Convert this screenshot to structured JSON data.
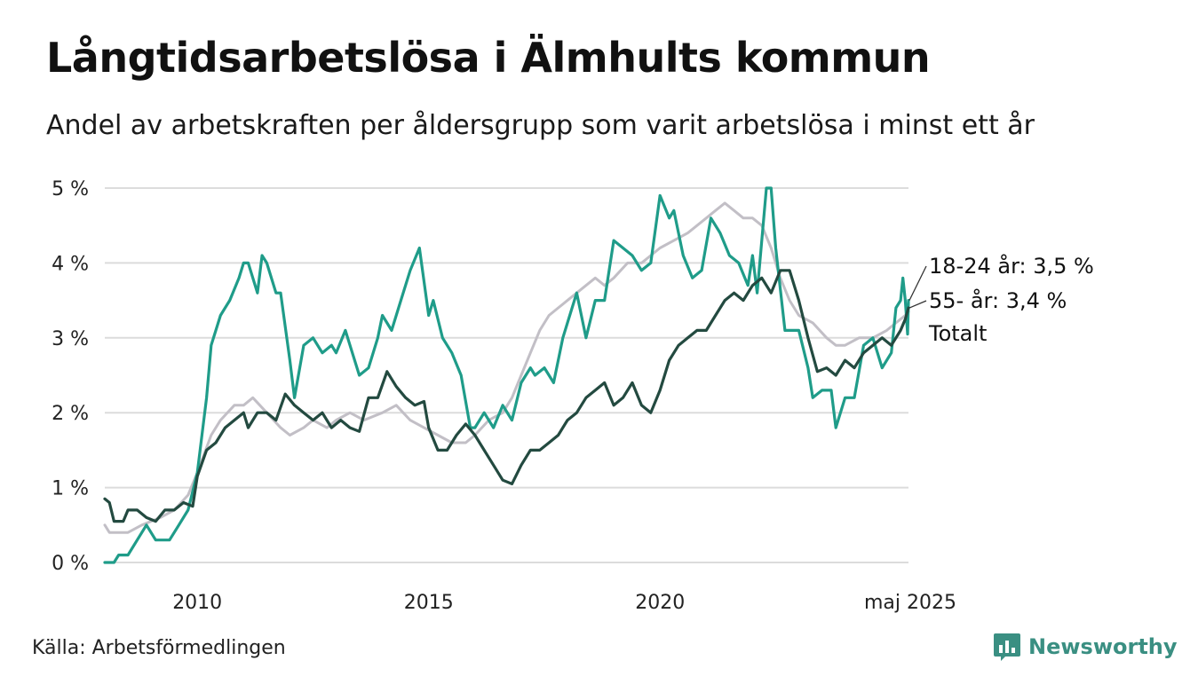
{
  "title": "Långtidsarbetslösa i Älmhults kommun",
  "subtitle": "Andel av arbetskraften per åldersgrupp som varit arbetslösa i minst ett år",
  "source": "Källa: Arbetsförmedlingen",
  "brand": {
    "name": "Newsworthy",
    "icon": "bar-chart-speech-bubble-icon",
    "color": "#3a8f82"
  },
  "chart_data": {
    "type": "line",
    "x_unit": "year",
    "xlim": [
      2008.0,
      2025.37
    ],
    "ylim": [
      0,
      5
    ],
    "y_ticks": [
      {
        "value": 0,
        "label": "0 %"
      },
      {
        "value": 1,
        "label": "1 %"
      },
      {
        "value": 2,
        "label": "2 %"
      },
      {
        "value": 3,
        "label": "3 %"
      },
      {
        "value": 4,
        "label": "4 %"
      },
      {
        "value": 5,
        "label": "5 %"
      }
    ],
    "x_ticks": [
      {
        "value": 2010,
        "label": "2010"
      },
      {
        "value": 2015,
        "label": "2015"
      },
      {
        "value": 2020,
        "label": "2020"
      },
      {
        "value": 2025.37,
        "label": "maj 2025"
      }
    ],
    "grid": true,
    "legend": "end-labels-right",
    "series": [
      {
        "name": "Totalt",
        "label": "Totalt",
        "color": "#c2bfc6",
        "points": [
          [
            2008.0,
            0.5
          ],
          [
            2008.1,
            0.4
          ],
          [
            2008.5,
            0.4
          ],
          [
            2008.8,
            0.5
          ],
          [
            2009.2,
            0.6
          ],
          [
            2009.5,
            0.7
          ],
          [
            2009.8,
            0.9
          ],
          [
            2010.0,
            1.2
          ],
          [
            2010.3,
            1.7
          ],
          [
            2010.5,
            1.9
          ],
          [
            2010.8,
            2.1
          ],
          [
            2011.0,
            2.1
          ],
          [
            2011.2,
            2.2
          ],
          [
            2011.5,
            2.0
          ],
          [
            2011.8,
            1.8
          ],
          [
            2012.0,
            1.7
          ],
          [
            2012.3,
            1.8
          ],
          [
            2012.5,
            1.9
          ],
          [
            2012.8,
            1.8
          ],
          [
            2013.0,
            1.9
          ],
          [
            2013.3,
            2.0
          ],
          [
            2013.6,
            1.9
          ],
          [
            2014.0,
            2.0
          ],
          [
            2014.3,
            2.1
          ],
          [
            2014.6,
            1.9
          ],
          [
            2014.9,
            1.8
          ],
          [
            2015.2,
            1.7
          ],
          [
            2015.5,
            1.6
          ],
          [
            2015.8,
            1.6
          ],
          [
            2016.0,
            1.7
          ],
          [
            2016.3,
            1.9
          ],
          [
            2016.6,
            2.0
          ],
          [
            2016.8,
            2.2
          ],
          [
            2017.0,
            2.5
          ],
          [
            2017.2,
            2.8
          ],
          [
            2017.4,
            3.1
          ],
          [
            2017.6,
            3.3
          ],
          [
            2017.8,
            3.4
          ],
          [
            2018.0,
            3.5
          ],
          [
            2018.2,
            3.6
          ],
          [
            2018.4,
            3.7
          ],
          [
            2018.6,
            3.8
          ],
          [
            2018.8,
            3.7
          ],
          [
            2019.0,
            3.8
          ],
          [
            2019.3,
            4.0
          ],
          [
            2019.6,
            4.0
          ],
          [
            2019.8,
            4.1
          ],
          [
            2020.0,
            4.2
          ],
          [
            2020.3,
            4.3
          ],
          [
            2020.6,
            4.4
          ],
          [
            2020.8,
            4.5
          ],
          [
            2021.0,
            4.6
          ],
          [
            2021.2,
            4.7
          ],
          [
            2021.4,
            4.8
          ],
          [
            2021.6,
            4.7
          ],
          [
            2021.8,
            4.6
          ],
          [
            2022.0,
            4.6
          ],
          [
            2022.2,
            4.5
          ],
          [
            2022.4,
            4.2
          ],
          [
            2022.6,
            3.8
          ],
          [
            2022.8,
            3.5
          ],
          [
            2023.0,
            3.3
          ],
          [
            2023.3,
            3.2
          ],
          [
            2023.6,
            3.0
          ],
          [
            2023.8,
            2.9
          ],
          [
            2024.0,
            2.9
          ],
          [
            2024.3,
            3.0
          ],
          [
            2024.6,
            3.0
          ],
          [
            2024.9,
            3.1
          ],
          [
            2025.1,
            3.2
          ],
          [
            2025.3,
            3.3
          ],
          [
            2025.37,
            3.35
          ]
        ]
      },
      {
        "name": "18-24 år",
        "label": "18-24 år: 3,5 %",
        "color": "#1f9c89",
        "points": [
          [
            2008.0,
            0.0
          ],
          [
            2008.2,
            0.0
          ],
          [
            2008.3,
            0.1
          ],
          [
            2008.5,
            0.1
          ],
          [
            2008.7,
            0.3
          ],
          [
            2008.9,
            0.5
          ],
          [
            2009.1,
            0.3
          ],
          [
            2009.4,
            0.3
          ],
          [
            2009.6,
            0.5
          ],
          [
            2009.8,
            0.7
          ],
          [
            2010.0,
            1.2
          ],
          [
            2010.2,
            2.2
          ],
          [
            2010.3,
            2.9
          ],
          [
            2010.5,
            3.3
          ],
          [
            2010.7,
            3.5
          ],
          [
            2010.9,
            3.8
          ],
          [
            2011.0,
            4.0
          ],
          [
            2011.1,
            4.0
          ],
          [
            2011.3,
            3.6
          ],
          [
            2011.4,
            4.1
          ],
          [
            2011.5,
            4.0
          ],
          [
            2011.7,
            3.6
          ],
          [
            2011.8,
            3.6
          ],
          [
            2012.0,
            2.7
          ],
          [
            2012.1,
            2.2
          ],
          [
            2012.3,
            2.9
          ],
          [
            2012.5,
            3.0
          ],
          [
            2012.7,
            2.8
          ],
          [
            2012.9,
            2.9
          ],
          [
            2013.0,
            2.8
          ],
          [
            2013.2,
            3.1
          ],
          [
            2013.3,
            2.9
          ],
          [
            2013.5,
            2.5
          ],
          [
            2013.7,
            2.6
          ],
          [
            2013.9,
            3.0
          ],
          [
            2014.0,
            3.3
          ],
          [
            2014.2,
            3.1
          ],
          [
            2014.4,
            3.5
          ],
          [
            2014.6,
            3.9
          ],
          [
            2014.8,
            4.2
          ],
          [
            2015.0,
            3.3
          ],
          [
            2015.1,
            3.5
          ],
          [
            2015.3,
            3.0
          ],
          [
            2015.5,
            2.8
          ],
          [
            2015.7,
            2.5
          ],
          [
            2015.9,
            1.8
          ],
          [
            2016.0,
            1.8
          ],
          [
            2016.2,
            2.0
          ],
          [
            2016.4,
            1.8
          ],
          [
            2016.6,
            2.1
          ],
          [
            2016.8,
            1.9
          ],
          [
            2017.0,
            2.4
          ],
          [
            2017.2,
            2.6
          ],
          [
            2017.3,
            2.5
          ],
          [
            2017.5,
            2.6
          ],
          [
            2017.7,
            2.4
          ],
          [
            2017.9,
            3.0
          ],
          [
            2018.0,
            3.2
          ],
          [
            2018.2,
            3.6
          ],
          [
            2018.4,
            3.0
          ],
          [
            2018.6,
            3.5
          ],
          [
            2018.8,
            3.5
          ],
          [
            2019.0,
            4.3
          ],
          [
            2019.2,
            4.2
          ],
          [
            2019.4,
            4.1
          ],
          [
            2019.6,
            3.9
          ],
          [
            2019.8,
            4.0
          ],
          [
            2020.0,
            4.9
          ],
          [
            2020.2,
            4.6
          ],
          [
            2020.3,
            4.7
          ],
          [
            2020.5,
            4.1
          ],
          [
            2020.7,
            3.8
          ],
          [
            2020.9,
            3.9
          ],
          [
            2021.1,
            4.6
          ],
          [
            2021.3,
            4.4
          ],
          [
            2021.5,
            4.1
          ],
          [
            2021.7,
            4.0
          ],
          [
            2021.9,
            3.7
          ],
          [
            2022.0,
            4.1
          ],
          [
            2022.1,
            3.6
          ],
          [
            2022.3,
            5.0
          ],
          [
            2022.4,
            5.0
          ],
          [
            2022.5,
            4.2
          ],
          [
            2022.7,
            3.1
          ],
          [
            2022.9,
            3.1
          ],
          [
            2023.0,
            3.1
          ],
          [
            2023.2,
            2.6
          ],
          [
            2023.3,
            2.2
          ],
          [
            2023.5,
            2.3
          ],
          [
            2023.7,
            2.3
          ],
          [
            2023.8,
            1.8
          ],
          [
            2024.0,
            2.2
          ],
          [
            2024.2,
            2.2
          ],
          [
            2024.4,
            2.9
          ],
          [
            2024.6,
            3.0
          ],
          [
            2024.8,
            2.6
          ],
          [
            2025.0,
            2.8
          ],
          [
            2025.1,
            3.4
          ],
          [
            2025.2,
            3.5
          ],
          [
            2025.25,
            3.8
          ],
          [
            2025.3,
            3.5
          ],
          [
            2025.35,
            3.05
          ],
          [
            2025.37,
            3.5
          ]
        ]
      },
      {
        "name": "55- år",
        "label": "55- år: 3,4 %",
        "color": "#234a40",
        "points": [
          [
            2008.0,
            0.85
          ],
          [
            2008.1,
            0.8
          ],
          [
            2008.2,
            0.55
          ],
          [
            2008.4,
            0.55
          ],
          [
            2008.5,
            0.7
          ],
          [
            2008.7,
            0.7
          ],
          [
            2008.9,
            0.6
          ],
          [
            2009.1,
            0.55
          ],
          [
            2009.3,
            0.7
          ],
          [
            2009.5,
            0.7
          ],
          [
            2009.7,
            0.8
          ],
          [
            2009.9,
            0.75
          ],
          [
            2010.0,
            1.15
          ],
          [
            2010.2,
            1.5
          ],
          [
            2010.4,
            1.6
          ],
          [
            2010.6,
            1.8
          ],
          [
            2010.8,
            1.9
          ],
          [
            2011.0,
            2.0
          ],
          [
            2011.1,
            1.8
          ],
          [
            2011.3,
            2.0
          ],
          [
            2011.5,
            2.0
          ],
          [
            2011.7,
            1.9
          ],
          [
            2011.9,
            2.25
          ],
          [
            2012.1,
            2.1
          ],
          [
            2012.3,
            2.0
          ],
          [
            2012.5,
            1.9
          ],
          [
            2012.7,
            2.0
          ],
          [
            2012.9,
            1.8
          ],
          [
            2013.1,
            1.9
          ],
          [
            2013.3,
            1.8
          ],
          [
            2013.5,
            1.75
          ],
          [
            2013.7,
            2.2
          ],
          [
            2013.9,
            2.2
          ],
          [
            2014.1,
            2.55
          ],
          [
            2014.3,
            2.35
          ],
          [
            2014.5,
            2.2
          ],
          [
            2014.7,
            2.1
          ],
          [
            2014.9,
            2.15
          ],
          [
            2015.0,
            1.8
          ],
          [
            2015.2,
            1.5
          ],
          [
            2015.4,
            1.5
          ],
          [
            2015.6,
            1.7
          ],
          [
            2015.8,
            1.85
          ],
          [
            2016.0,
            1.7
          ],
          [
            2016.2,
            1.5
          ],
          [
            2016.4,
            1.3
          ],
          [
            2016.6,
            1.1
          ],
          [
            2016.8,
            1.05
          ],
          [
            2017.0,
            1.3
          ],
          [
            2017.2,
            1.5
          ],
          [
            2017.4,
            1.5
          ],
          [
            2017.6,
            1.6
          ],
          [
            2017.8,
            1.7
          ],
          [
            2018.0,
            1.9
          ],
          [
            2018.2,
            2.0
          ],
          [
            2018.4,
            2.2
          ],
          [
            2018.6,
            2.3
          ],
          [
            2018.8,
            2.4
          ],
          [
            2019.0,
            2.1
          ],
          [
            2019.2,
            2.2
          ],
          [
            2019.4,
            2.4
          ],
          [
            2019.6,
            2.1
          ],
          [
            2019.8,
            2.0
          ],
          [
            2020.0,
            2.3
          ],
          [
            2020.2,
            2.7
          ],
          [
            2020.4,
            2.9
          ],
          [
            2020.6,
            3.0
          ],
          [
            2020.8,
            3.1
          ],
          [
            2021.0,
            3.1
          ],
          [
            2021.2,
            3.3
          ],
          [
            2021.4,
            3.5
          ],
          [
            2021.6,
            3.6
          ],
          [
            2021.8,
            3.5
          ],
          [
            2022.0,
            3.7
          ],
          [
            2022.2,
            3.8
          ],
          [
            2022.4,
            3.6
          ],
          [
            2022.6,
            3.9
          ],
          [
            2022.8,
            3.9
          ],
          [
            2023.0,
            3.5
          ],
          [
            2023.2,
            3.0
          ],
          [
            2023.4,
            2.55
          ],
          [
            2023.6,
            2.6
          ],
          [
            2023.8,
            2.5
          ],
          [
            2024.0,
            2.7
          ],
          [
            2024.2,
            2.6
          ],
          [
            2024.4,
            2.8
          ],
          [
            2024.6,
            2.9
          ],
          [
            2024.8,
            3.0
          ],
          [
            2025.0,
            2.9
          ],
          [
            2025.1,
            3.0
          ],
          [
            2025.2,
            3.1
          ],
          [
            2025.3,
            3.25
          ],
          [
            2025.37,
            3.4
          ]
        ]
      }
    ]
  }
}
